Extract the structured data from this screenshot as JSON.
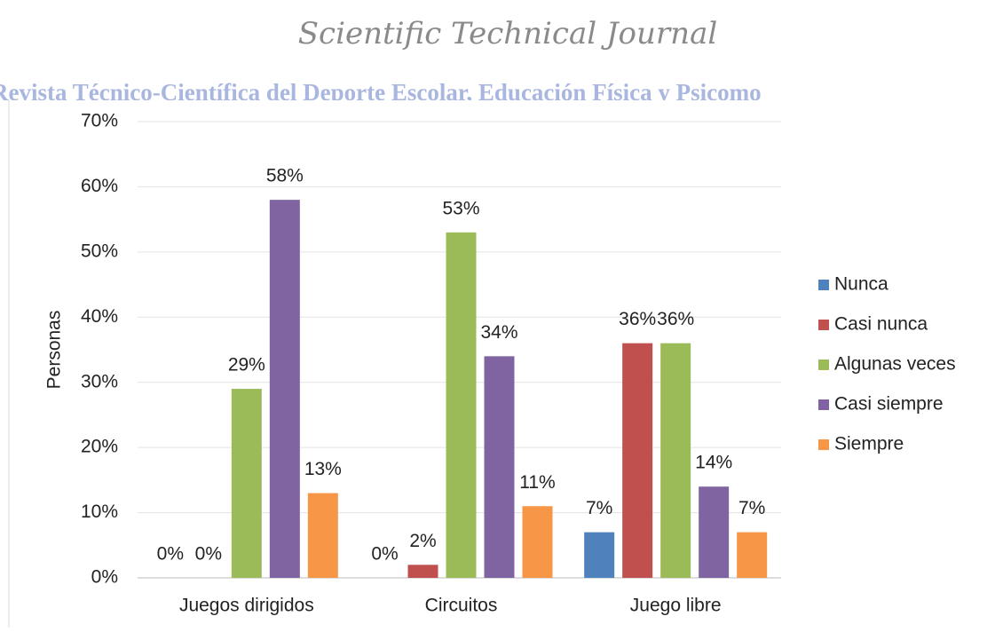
{
  "chart_data": {
    "type": "bar",
    "title": "Scientific Technical Journal",
    "subtitle": "Revista Técnico-Científica del Deporte Escolar, Educación Física y Psicomo",
    "y_label": "Personas",
    "categories": [
      "Juegos dirigidos",
      "Circuitos",
      "Juego libre"
    ],
    "series": [
      {
        "name": "Nunca",
        "color": "#4f81bd",
        "values": [
          0,
          0,
          7
        ],
        "value_labels": [
          "0%",
          "0%",
          "7%"
        ]
      },
      {
        "name": "Casi nunca",
        "color": "#c0504d",
        "values": [
          0,
          2,
          36
        ],
        "value_labels": [
          "0%",
          "2%",
          "36%"
        ]
      },
      {
        "name": "Algunas veces",
        "color": "#9bbb59",
        "values": [
          29,
          53,
          36
        ],
        "value_labels": [
          "29%",
          "53%",
          "36%"
        ]
      },
      {
        "name": "Casi siempre",
        "color": "#8064a2",
        "values": [
          58,
          34,
          14
        ],
        "value_labels": [
          "58%",
          "34%",
          "14%"
        ]
      },
      {
        "name": "Siempre",
        "color": "#f79646",
        "values": [
          13,
          11,
          7
        ],
        "value_labels": [
          "13%",
          "11%",
          "7%"
        ]
      }
    ],
    "ylim": [
      0,
      70
    ],
    "yticks": [
      {
        "value": 0,
        "label": "0%"
      },
      {
        "value": 10,
        "label": "10%"
      },
      {
        "value": 20,
        "label": "20%"
      },
      {
        "value": 30,
        "label": "30%"
      },
      {
        "value": 40,
        "label": "40%"
      },
      {
        "value": 50,
        "label": "50%"
      },
      {
        "value": 60,
        "label": "60%"
      },
      {
        "value": 70,
        "label": "70%"
      }
    ],
    "grid": true,
    "legend": "right"
  }
}
